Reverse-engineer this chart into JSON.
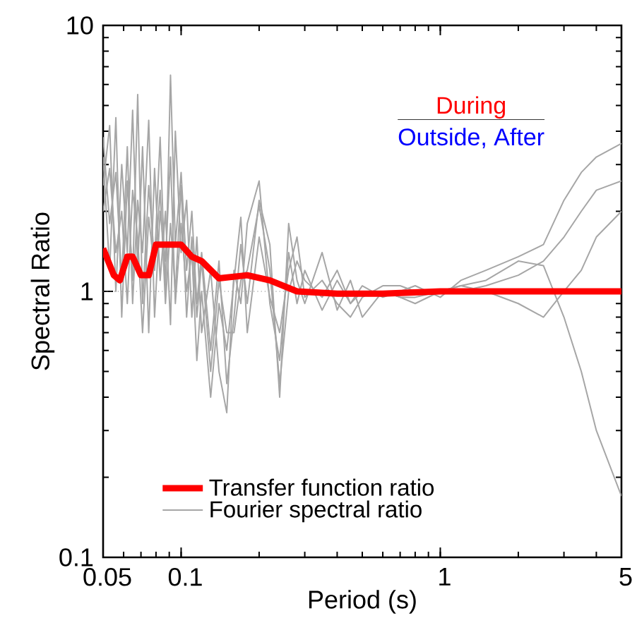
{
  "chart_data": {
    "type": "line",
    "xlabel": "Period (s)",
    "ylabel": "Spectral Ratio",
    "log": "xy",
    "xlim": [
      0.05,
      5
    ],
    "ylim": [
      0.1,
      10
    ],
    "xticks": [
      0.05,
      0.1,
      1,
      5
    ],
    "yticks": [
      0.1,
      1,
      10
    ],
    "legend": "bottom left",
    "annotations": [
      "During",
      "Outside, After"
    ],
    "ref_lines": [
      {
        "axis": "y",
        "value": 1,
        "color": "#808080",
        "line_style": "dotted"
      }
    ],
    "series": [
      {
        "name": "Fourier spectral ratio",
        "color": "#a6a6a6",
        "x": [
          0.05,
          0.053,
          0.056,
          0.059,
          0.062,
          0.065,
          0.068,
          0.071,
          0.075,
          0.079,
          0.083,
          0.087,
          0.091,
          0.095,
          0.1,
          0.105,
          0.11,
          0.115,
          0.12,
          0.13,
          0.14,
          0.15,
          0.16,
          0.17,
          0.18,
          0.2,
          0.22,
          0.24,
          0.26,
          0.28,
          0.3,
          0.35,
          0.4,
          0.45,
          0.5,
          0.6,
          0.7,
          0.8,
          1,
          1.2,
          1.5,
          2,
          2.5,
          3,
          3.5,
          4,
          5
        ],
        "values": [
          3.2,
          1.2,
          4.5,
          0.8,
          2.6,
          1.1,
          5.5,
          0.9,
          2.5,
          1.3,
          3.8,
          1.0,
          6.5,
          1.5,
          2.8,
          1.2,
          2.0,
          0.9,
          1.4,
          0.6,
          1.3,
          0.45,
          0.8,
          1.5,
          0.9,
          2.2,
          1.5,
          0.4,
          1.8,
          1.1,
          0.9,
          1.4,
          0.85,
          1.1,
          0.8,
          1.0,
          0.95,
          0.9,
          1.0,
          1.05,
          1.1,
          1.3,
          1.25,
          0.8,
          0.5,
          0.3,
          0.17
        ]
      },
      {
        "color": "#a6a6a6",
        "x": [
          0.05,
          0.053,
          0.056,
          0.059,
          0.062,
          0.065,
          0.068,
          0.071,
          0.075,
          0.079,
          0.083,
          0.087,
          0.091,
          0.095,
          0.1,
          0.105,
          0.11,
          0.115,
          0.12,
          0.13,
          0.14,
          0.15,
          0.16,
          0.17,
          0.18,
          0.2,
          0.22,
          0.24,
          0.26,
          0.28,
          0.3,
          0.35,
          0.4,
          0.45,
          0.5,
          0.6,
          0.7,
          0.8,
          1,
          1.2,
          1.5,
          2,
          2.5,
          3,
          3.5,
          4,
          5
        ],
        "values": [
          2.5,
          4.2,
          1.0,
          3.0,
          1.4,
          4.8,
          1.2,
          3.5,
          0.7,
          2.9,
          1.1,
          2.0,
          0.75,
          4.0,
          1.4,
          2.2,
          0.8,
          1.6,
          0.7,
          1.2,
          0.5,
          0.35,
          1.2,
          0.9,
          1.8,
          2.6,
          0.9,
          0.55,
          1.4,
          0.9,
          1.2,
          0.85,
          1.1,
          0.9,
          1.05,
          0.95,
          1.0,
          1.05,
          0.95,
          1.1,
          1.2,
          1.35,
          1.5,
          2.2,
          2.8,
          3.2,
          3.6
        ]
      },
      {
        "color": "#a6a6a6",
        "x": [
          0.05,
          0.053,
          0.056,
          0.059,
          0.062,
          0.065,
          0.068,
          0.071,
          0.075,
          0.079,
          0.083,
          0.087,
          0.091,
          0.095,
          0.1,
          0.105,
          0.11,
          0.115,
          0.12,
          0.13,
          0.14,
          0.15,
          0.16,
          0.17,
          0.18,
          0.2,
          0.22,
          0.24,
          0.26,
          0.28,
          0.3,
          0.35,
          0.4,
          0.45,
          0.5,
          0.6,
          0.7,
          0.8,
          1,
          1.2,
          1.5,
          2,
          2.5,
          3,
          3.5,
          4,
          5
        ],
        "values": [
          3.8,
          1.8,
          2.8,
          1.1,
          3.5,
          0.9,
          2.2,
          1.4,
          4.4,
          0.8,
          2.0,
          1.3,
          3.2,
          0.9,
          1.8,
          1.0,
          1.4,
          0.55,
          1.0,
          0.4,
          0.9,
          0.6,
          1.1,
          1.9,
          0.7,
          1.6,
          0.95,
          0.7,
          1.2,
          1.6,
          0.95,
          1.1,
          0.9,
          0.8,
          0.95,
          1.05,
          1.05,
          1.0,
          1.0,
          1.0,
          1.05,
          1.15,
          1.3,
          1.6,
          2.0,
          2.4,
          2.6
        ]
      },
      {
        "color": "#a6a6a6",
        "x": [
          0.05,
          0.053,
          0.056,
          0.059,
          0.062,
          0.065,
          0.068,
          0.071,
          0.075,
          0.079,
          0.083,
          0.087,
          0.091,
          0.095,
          0.1,
          0.105,
          0.11,
          0.115,
          0.12,
          0.13,
          0.14,
          0.15,
          0.16,
          0.17,
          0.18,
          0.2,
          0.22,
          0.24,
          0.26,
          0.28,
          0.3,
          0.35,
          0.4,
          0.45,
          0.5,
          0.6,
          0.7,
          0.8,
          1,
          1.2,
          1.5,
          2,
          2.5,
          3,
          3.5,
          4,
          5
        ],
        "values": [
          2.0,
          2.9,
          1.4,
          2.0,
          0.9,
          2.4,
          1.6,
          0.7,
          1.9,
          1.2,
          2.4,
          0.9,
          1.8,
          1.0,
          2.5,
          0.8,
          1.6,
          0.8,
          1.3,
          0.5,
          1.1,
          0.7,
          0.7,
          1.1,
          1.2,
          2.1,
          1.2,
          0.45,
          1.0,
          1.3,
          1.1,
          0.95,
          1.2,
          0.9,
          1.0,
          1.0,
          0.95,
          0.95,
          1.0,
          1.05,
          1.0,
          0.9,
          0.8,
          1.0,
          1.2,
          1.6,
          2.0
        ]
      },
      {
        "name": "Transfer function ratio",
        "color": "#ff0000",
        "x": [
          0.05,
          0.055,
          0.058,
          0.062,
          0.065,
          0.07,
          0.075,
          0.08,
          0.09,
          0.1,
          0.11,
          0.12,
          0.14,
          0.18,
          0.22,
          0.28,
          0.4,
          0.6,
          1,
          2,
          5
        ],
        "values": [
          1.45,
          1.15,
          1.1,
          1.35,
          1.35,
          1.15,
          1.15,
          1.5,
          1.5,
          1.5,
          1.35,
          1.3,
          1.12,
          1.15,
          1.1,
          1.0,
          0.98,
          0.98,
          1.0,
          1.0,
          1.0
        ]
      }
    ]
  }
}
